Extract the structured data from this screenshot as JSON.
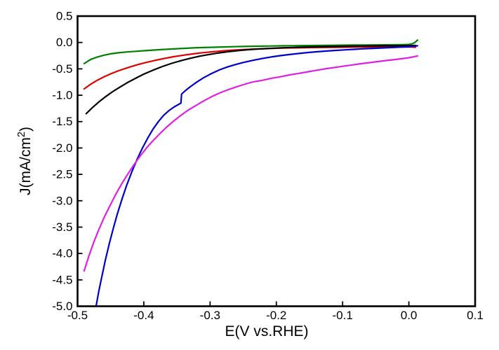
{
  "figure": {
    "background": "#ffffff",
    "frame_color": "#000000"
  },
  "chart_data": {
    "type": "line",
    "title": "",
    "xlabel": "E(V vs.RHE)",
    "ylabel": "J(mA/cm2)",
    "ylabel_parts": {
      "pre": "J(mA/cm",
      "sup": "2",
      "post": ")"
    },
    "xlim": [
      -0.5,
      0.1
    ],
    "ylim": [
      -5.0,
      0.5
    ],
    "grid": false,
    "legend": "none",
    "xticks": [
      {
        "value": -0.5,
        "label": "-0.5"
      },
      {
        "value": -0.4,
        "label": "-0.4"
      },
      {
        "value": -0.3,
        "label": "-0.3"
      },
      {
        "value": -0.2,
        "label": "-0.2"
      },
      {
        "value": -0.1,
        "label": "-0.1"
      },
      {
        "value": 0.0,
        "label": "0.0"
      },
      {
        "value": 0.1,
        "label": "0.1"
      }
    ],
    "yticks": [
      {
        "value": 0.5,
        "label": "0.5"
      },
      {
        "value": 0.0,
        "label": "0.0"
      },
      {
        "value": -0.5,
        "label": "-0.5"
      },
      {
        "value": -1.0,
        "label": "-1.0"
      },
      {
        "value": -1.5,
        "label": "-1.5"
      },
      {
        "value": -2.0,
        "label": "-2.0"
      },
      {
        "value": -2.5,
        "label": "-2.5"
      },
      {
        "value": -3.0,
        "label": "-3.0"
      },
      {
        "value": -3.5,
        "label": "-3.5"
      },
      {
        "value": -4.0,
        "label": "-4.0"
      },
      {
        "value": -4.5,
        "label": "-4.5"
      },
      {
        "value": -5.0,
        "label": "-5.0"
      }
    ],
    "series": [
      {
        "name": "green",
        "color": "#008000",
        "points": [
          [
            -0.49,
            -0.4
          ],
          [
            -0.48,
            -0.32
          ],
          [
            -0.47,
            -0.275
          ],
          [
            -0.46,
            -0.24
          ],
          [
            -0.45,
            -0.215
          ],
          [
            -0.438,
            -0.195
          ],
          [
            -0.425,
            -0.18
          ],
          [
            -0.412,
            -0.168
          ],
          [
            -0.4,
            -0.157
          ],
          [
            -0.385,
            -0.143
          ],
          [
            -0.37,
            -0.132
          ],
          [
            -0.355,
            -0.122
          ],
          [
            -0.34,
            -0.112
          ],
          [
            -0.325,
            -0.103
          ],
          [
            -0.31,
            -0.096
          ],
          [
            -0.295,
            -0.09
          ],
          [
            -0.28,
            -0.085
          ],
          [
            -0.265,
            -0.08
          ],
          [
            -0.25,
            -0.076
          ],
          [
            -0.235,
            -0.072
          ],
          [
            -0.22,
            -0.069
          ],
          [
            -0.205,
            -0.066
          ],
          [
            -0.19,
            -0.063
          ],
          [
            -0.175,
            -0.061
          ],
          [
            -0.16,
            -0.059
          ],
          [
            -0.145,
            -0.057
          ],
          [
            -0.13,
            -0.055
          ],
          [
            -0.115,
            -0.053
          ],
          [
            -0.1,
            -0.051
          ],
          [
            -0.085,
            -0.05
          ],
          [
            -0.07,
            -0.048
          ],
          [
            -0.055,
            -0.047
          ],
          [
            -0.04,
            -0.045
          ],
          [
            -0.025,
            -0.044
          ],
          [
            -0.01,
            -0.042
          ],
          [
            0.0,
            -0.038
          ],
          [
            0.005,
            -0.025
          ],
          [
            0.009,
            0.0
          ],
          [
            0.013,
            0.045
          ]
        ]
      },
      {
        "name": "red",
        "color": "#e00000",
        "points": [
          [
            -0.49,
            -0.88
          ],
          [
            -0.48,
            -0.79
          ],
          [
            -0.47,
            -0.715
          ],
          [
            -0.46,
            -0.65
          ],
          [
            -0.45,
            -0.595
          ],
          [
            -0.438,
            -0.535
          ],
          [
            -0.425,
            -0.48
          ],
          [
            -0.412,
            -0.43
          ],
          [
            -0.4,
            -0.39
          ],
          [
            -0.385,
            -0.345
          ],
          [
            -0.37,
            -0.305
          ],
          [
            -0.355,
            -0.27
          ],
          [
            -0.34,
            -0.24
          ],
          [
            -0.325,
            -0.215
          ],
          [
            -0.31,
            -0.193
          ],
          [
            -0.295,
            -0.175
          ],
          [
            -0.28,
            -0.158
          ],
          [
            -0.265,
            -0.145
          ],
          [
            -0.25,
            -0.134
          ],
          [
            -0.235,
            -0.125
          ],
          [
            -0.22,
            -0.118
          ],
          [
            -0.205,
            -0.112
          ],
          [
            -0.19,
            -0.107
          ],
          [
            -0.175,
            -0.103
          ],
          [
            -0.16,
            -0.099
          ],
          [
            -0.145,
            -0.096
          ],
          [
            -0.13,
            -0.094
          ],
          [
            -0.115,
            -0.092
          ],
          [
            -0.1,
            -0.09
          ],
          [
            -0.085,
            -0.089
          ],
          [
            -0.07,
            -0.088
          ],
          [
            -0.055,
            -0.087
          ],
          [
            -0.04,
            -0.086
          ],
          [
            -0.025,
            -0.085
          ],
          [
            -0.01,
            -0.085
          ],
          [
            0.003,
            -0.085
          ],
          [
            0.01,
            -0.09
          ]
        ]
      },
      {
        "name": "black",
        "color": "#000000",
        "points": [
          [
            -0.487,
            -1.35
          ],
          [
            -0.478,
            -1.24
          ],
          [
            -0.468,
            -1.13
          ],
          [
            -0.458,
            -1.03
          ],
          [
            -0.448,
            -0.94
          ],
          [
            -0.436,
            -0.845
          ],
          [
            -0.424,
            -0.755
          ],
          [
            -0.412,
            -0.675
          ],
          [
            -0.4,
            -0.6
          ],
          [
            -0.386,
            -0.525
          ],
          [
            -0.372,
            -0.455
          ],
          [
            -0.358,
            -0.395
          ],
          [
            -0.344,
            -0.345
          ],
          [
            -0.33,
            -0.3
          ],
          [
            -0.316,
            -0.26
          ],
          [
            -0.302,
            -0.228
          ],
          [
            -0.288,
            -0.2
          ],
          [
            -0.274,
            -0.177
          ],
          [
            -0.26,
            -0.157
          ],
          [
            -0.246,
            -0.141
          ],
          [
            -0.232,
            -0.128
          ],
          [
            -0.218,
            -0.117
          ],
          [
            -0.204,
            -0.108
          ],
          [
            -0.19,
            -0.1
          ],
          [
            -0.176,
            -0.094
          ],
          [
            -0.162,
            -0.089
          ],
          [
            -0.148,
            -0.084
          ],
          [
            -0.134,
            -0.08
          ],
          [
            -0.12,
            -0.077
          ],
          [
            -0.106,
            -0.074
          ],
          [
            -0.092,
            -0.071
          ],
          [
            -0.078,
            -0.069
          ],
          [
            -0.064,
            -0.067
          ],
          [
            -0.05,
            -0.065
          ],
          [
            -0.036,
            -0.063
          ],
          [
            -0.022,
            -0.062
          ],
          [
            -0.008,
            -0.06
          ],
          [
            0.004,
            -0.058
          ],
          [
            0.01,
            -0.055
          ]
        ]
      },
      {
        "name": "blue",
        "color": "#0000cc",
        "points": [
          [
            -0.472,
            -5.0
          ],
          [
            -0.468,
            -4.72
          ],
          [
            -0.463,
            -4.42
          ],
          [
            -0.458,
            -4.12
          ],
          [
            -0.452,
            -3.81
          ],
          [
            -0.446,
            -3.52
          ],
          [
            -0.44,
            -3.25
          ],
          [
            -0.433,
            -2.97
          ],
          [
            -0.426,
            -2.71
          ],
          [
            -0.418,
            -2.45
          ],
          [
            -0.41,
            -2.21
          ],
          [
            -0.402,
            -2.0
          ],
          [
            -0.394,
            -1.81
          ],
          [
            -0.386,
            -1.64
          ],
          [
            -0.378,
            -1.5
          ],
          [
            -0.37,
            -1.38
          ],
          [
            -0.362,
            -1.29
          ],
          [
            -0.354,
            -1.22
          ],
          [
            -0.347,
            -1.17
          ],
          [
            -0.344,
            -1.15
          ],
          [
            -0.343,
            -0.98
          ],
          [
            -0.338,
            -0.92
          ],
          [
            -0.33,
            -0.84
          ],
          [
            -0.32,
            -0.75
          ],
          [
            -0.31,
            -0.67
          ],
          [
            -0.298,
            -0.59
          ],
          [
            -0.286,
            -0.52
          ],
          [
            -0.274,
            -0.465
          ],
          [
            -0.262,
            -0.42
          ],
          [
            -0.25,
            -0.38
          ],
          [
            -0.236,
            -0.34
          ],
          [
            -0.222,
            -0.305
          ],
          [
            -0.208,
            -0.275
          ],
          [
            -0.194,
            -0.25
          ],
          [
            -0.18,
            -0.228
          ],
          [
            -0.166,
            -0.208
          ],
          [
            -0.152,
            -0.19
          ],
          [
            -0.138,
            -0.175
          ],
          [
            -0.124,
            -0.162
          ],
          [
            -0.11,
            -0.15
          ],
          [
            -0.096,
            -0.14
          ],
          [
            -0.082,
            -0.13
          ],
          [
            -0.068,
            -0.12
          ],
          [
            -0.054,
            -0.112
          ],
          [
            -0.04,
            -0.104
          ],
          [
            -0.026,
            -0.096
          ],
          [
            -0.012,
            -0.088
          ],
          [
            0.0,
            -0.08
          ],
          [
            0.008,
            -0.072
          ],
          [
            0.013,
            -0.062
          ]
        ]
      },
      {
        "name": "magenta",
        "color": "#e020e0",
        "points": [
          [
            -0.49,
            -4.33
          ],
          [
            -0.483,
            -4.05
          ],
          [
            -0.476,
            -3.8
          ],
          [
            -0.468,
            -3.55
          ],
          [
            -0.46,
            -3.32
          ],
          [
            -0.451,
            -3.09
          ],
          [
            -0.442,
            -2.87
          ],
          [
            -0.433,
            -2.67
          ],
          [
            -0.424,
            -2.49
          ],
          [
            -0.415,
            -2.32
          ],
          [
            -0.406,
            -2.16
          ],
          [
            -0.396,
            -2.0
          ],
          [
            -0.386,
            -1.86
          ],
          [
            -0.376,
            -1.73
          ],
          [
            -0.366,
            -1.61
          ],
          [
            -0.356,
            -1.5
          ],
          [
            -0.346,
            -1.4
          ],
          [
            -0.334,
            -1.29
          ],
          [
            -0.322,
            -1.2
          ],
          [
            -0.31,
            -1.11
          ],
          [
            -0.298,
            -1.03
          ],
          [
            -0.286,
            -0.96
          ],
          [
            -0.274,
            -0.9
          ],
          [
            -0.262,
            -0.85
          ],
          [
            -0.25,
            -0.8
          ],
          [
            -0.236,
            -0.75
          ],
          [
            -0.222,
            -0.72
          ],
          [
            -0.208,
            -0.68
          ],
          [
            -0.194,
            -0.65
          ],
          [
            -0.18,
            -0.615
          ],
          [
            -0.166,
            -0.585
          ],
          [
            -0.152,
            -0.555
          ],
          [
            -0.138,
            -0.525
          ],
          [
            -0.124,
            -0.495
          ],
          [
            -0.11,
            -0.47
          ],
          [
            -0.096,
            -0.445
          ],
          [
            -0.082,
            -0.42
          ],
          [
            -0.068,
            -0.395
          ],
          [
            -0.054,
            -0.375
          ],
          [
            -0.04,
            -0.35
          ],
          [
            -0.026,
            -0.33
          ],
          [
            -0.012,
            -0.31
          ],
          [
            0.0,
            -0.29
          ],
          [
            0.008,
            -0.268
          ],
          [
            0.013,
            -0.255
          ]
        ]
      }
    ]
  }
}
